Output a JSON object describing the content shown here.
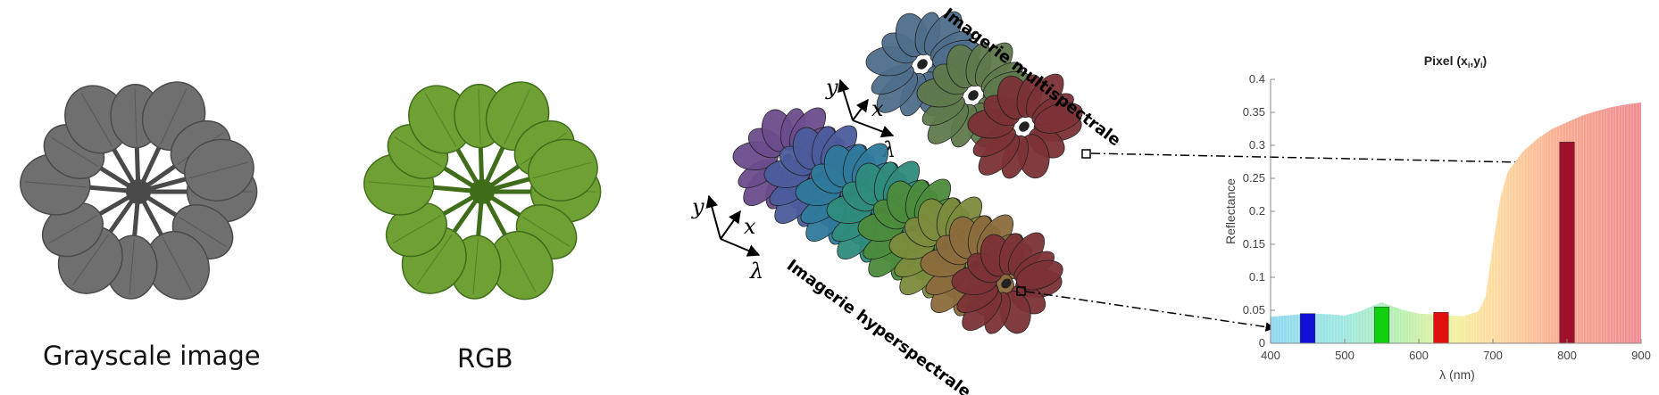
{
  "panels": {
    "grayscale": {
      "caption": "Grayscale image",
      "leaf_color": "#6f6f6f",
      "leaf_edge": "#4a4a4a"
    },
    "rgb": {
      "caption": "RGB",
      "leaf_color": "#6ea033",
      "leaf_edge": "#3f6d1a"
    }
  },
  "cubes": {
    "multispectral": {
      "label": "Imagerie multispectrale",
      "band_colors": [
        "#4f6e8c",
        "#5f7a4c",
        "#7c3236"
      ],
      "axes": {
        "y": "y",
        "x": "x",
        "lambda": "λ"
      }
    },
    "hyperspectral": {
      "label": "Imagerie hyperspectrale",
      "band_colors": [
        "#6b4c8c",
        "#4b5c9c",
        "#2f7a9c",
        "#2f8c7c",
        "#4c8c3c",
        "#7c8c3c",
        "#8c6c3c",
        "#7c3236"
      ],
      "axes": {
        "y": "y",
        "x": "x",
        "lambda": "λ"
      }
    }
  },
  "chart_data": {
    "type": "bar",
    "title": "Pixel (x",
    "title_sub": "i",
    "title_mid": ",y",
    "title_end": ")",
    "xlabel": "λ (nm)",
    "ylabel": "Reflectance",
    "xlim": [
      400,
      900
    ],
    "ylim": [
      0,
      0.4
    ],
    "xticks": [
      "400",
      "500",
      "600",
      "700",
      "800",
      "900"
    ],
    "yticks": [
      "0",
      "0.05",
      "0.1",
      "0.15",
      "0.2",
      "0.25",
      "0.3",
      "0.35",
      "0.4"
    ],
    "spectrum_curve": {
      "x": [
        400,
        420,
        440,
        460,
        480,
        500,
        520,
        540,
        550,
        560,
        580,
        600,
        620,
        640,
        660,
        680,
        690,
        700,
        710,
        720,
        740,
        760,
        780,
        800,
        820,
        840,
        860,
        880,
        900
      ],
      "y": [
        0.04,
        0.042,
        0.044,
        0.045,
        0.044,
        0.042,
        0.048,
        0.058,
        0.062,
        0.058,
        0.05,
        0.045,
        0.044,
        0.042,
        0.041,
        0.048,
        0.07,
        0.15,
        0.22,
        0.26,
        0.29,
        0.31,
        0.325,
        0.335,
        0.345,
        0.352,
        0.358,
        0.362,
        0.365
      ]
    },
    "bands": [
      {
        "x": 450,
        "value": 0.045,
        "color": "#1010d8"
      },
      {
        "x": 550,
        "value": 0.055,
        "color": "#10d010"
      },
      {
        "x": 630,
        "value": 0.047,
        "color": "#e01010"
      },
      {
        "x": 800,
        "value": 0.305,
        "color": "#a0102a"
      }
    ]
  }
}
